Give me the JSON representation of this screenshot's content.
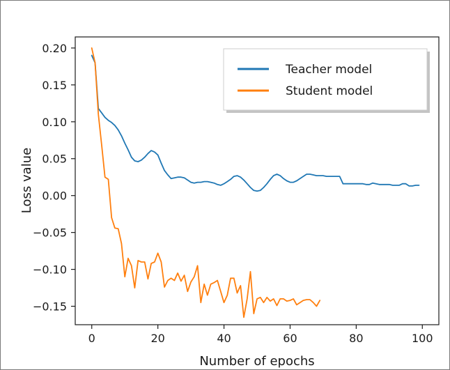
{
  "chart_data": {
    "type": "line",
    "xlabel": "Number of epochs",
    "ylabel": "Loss value",
    "xlim": [
      -5,
      105
    ],
    "ylim": [
      -0.175,
      0.215
    ],
    "xticks": [
      {
        "value": 0,
        "label": "0"
      },
      {
        "value": 20,
        "label": "20"
      },
      {
        "value": 40,
        "label": "40"
      },
      {
        "value": 60,
        "label": "60"
      },
      {
        "value": 80,
        "label": "80"
      },
      {
        "value": 100,
        "label": "100"
      }
    ],
    "yticks": [
      {
        "value": 0.2,
        "label": "0.20"
      },
      {
        "value": 0.15,
        "label": "0.15"
      },
      {
        "value": 0.1,
        "label": "0.10"
      },
      {
        "value": 0.05,
        "label": "0.05"
      },
      {
        "value": 0.0,
        "label": "0.00"
      },
      {
        "value": -0.05,
        "label": "−0.05"
      },
      {
        "value": -0.1,
        "label": "−0.10"
      },
      {
        "value": -0.15,
        "label": "−0.15"
      }
    ],
    "grid": false,
    "legend": {
      "position": "top-right"
    },
    "series": [
      {
        "name": "Teacher model",
        "color": "#1f77b4",
        "x": [
          0,
          1,
          2,
          3,
          4,
          5,
          6,
          7,
          8,
          9,
          10,
          11,
          12,
          13,
          14,
          15,
          16,
          17,
          18,
          19,
          20,
          21,
          22,
          23,
          24,
          25,
          26,
          27,
          28,
          29,
          30,
          31,
          32,
          33,
          34,
          35,
          36,
          37,
          38,
          39,
          40,
          41,
          42,
          43,
          44,
          45,
          46,
          47,
          48,
          49,
          50,
          51,
          52,
          53,
          54,
          55,
          56,
          57,
          58,
          59,
          60,
          61,
          62,
          63,
          64,
          65,
          66,
          67,
          68,
          69,
          70,
          71,
          72,
          73,
          74,
          75,
          76,
          77,
          78,
          79,
          80,
          81,
          82,
          83,
          84,
          85,
          86,
          87,
          88,
          89,
          90,
          91,
          92,
          93,
          94,
          95,
          96,
          97,
          98,
          99
        ],
        "y": [
          0.19,
          0.18,
          0.118,
          0.112,
          0.106,
          0.102,
          0.099,
          0.095,
          0.089,
          0.081,
          0.071,
          0.062,
          0.052,
          0.047,
          0.046,
          0.048,
          0.052,
          0.057,
          0.061,
          0.059,
          0.055,
          0.044,
          0.034,
          0.028,
          0.023,
          0.024,
          0.025,
          0.025,
          0.024,
          0.021,
          0.018,
          0.017,
          0.018,
          0.018,
          0.019,
          0.019,
          0.018,
          0.017,
          0.015,
          0.014,
          0.016,
          0.019,
          0.022,
          0.026,
          0.027,
          0.025,
          0.021,
          0.016,
          0.011,
          0.007,
          0.006,
          0.007,
          0.011,
          0.016,
          0.022,
          0.027,
          0.029,
          0.027,
          0.023,
          0.02,
          0.018,
          0.018,
          0.02,
          0.023,
          0.026,
          0.029,
          0.029,
          0.028,
          0.027,
          0.027,
          0.027,
          0.026,
          0.026,
          0.026,
          0.026,
          0.026,
          0.016,
          0.016,
          0.016,
          0.016,
          0.016,
          0.016,
          0.016,
          0.015,
          0.015,
          0.017,
          0.016,
          0.015,
          0.015,
          0.015,
          0.015,
          0.014,
          0.014,
          0.014,
          0.016,
          0.016,
          0.013,
          0.013,
          0.014,
          0.014
        ]
      },
      {
        "name": "Student model",
        "color": "#ff7f0e",
        "x": [
          0,
          1,
          2,
          3,
          4,
          5,
          6,
          7,
          8,
          9,
          10,
          11,
          12,
          13,
          14,
          15,
          16,
          17,
          18,
          19,
          20,
          21,
          22,
          23,
          24,
          25,
          26,
          27,
          28,
          29,
          30,
          31,
          32,
          33,
          34,
          35,
          36,
          37,
          38,
          39,
          40,
          41,
          42,
          43,
          44,
          45,
          46,
          47,
          48,
          49,
          50,
          51,
          52,
          53,
          54,
          55,
          56,
          57,
          58,
          59,
          60,
          61,
          62,
          63,
          64,
          65,
          66,
          67,
          68,
          69
        ],
        "y": [
          0.2,
          0.18,
          0.11,
          0.068,
          0.025,
          0.022,
          -0.03,
          -0.044,
          -0.045,
          -0.065,
          -0.11,
          -0.085,
          -0.095,
          -0.125,
          -0.088,
          -0.09,
          -0.09,
          -0.113,
          -0.092,
          -0.09,
          -0.078,
          -0.09,
          -0.124,
          -0.115,
          -0.112,
          -0.115,
          -0.105,
          -0.116,
          -0.108,
          -0.13,
          -0.117,
          -0.11,
          -0.095,
          -0.145,
          -0.12,
          -0.135,
          -0.12,
          -0.118,
          -0.115,
          -0.13,
          -0.145,
          -0.135,
          -0.112,
          -0.112,
          -0.132,
          -0.122,
          -0.165,
          -0.14,
          -0.103,
          -0.16,
          -0.14,
          -0.138,
          -0.145,
          -0.138,
          -0.143,
          -0.14,
          -0.149,
          -0.14,
          -0.14,
          -0.143,
          -0.142,
          -0.14,
          -0.148,
          -0.145,
          -0.142,
          -0.141,
          -0.141,
          -0.145,
          -0.15,
          -0.142
        ]
      }
    ]
  }
}
